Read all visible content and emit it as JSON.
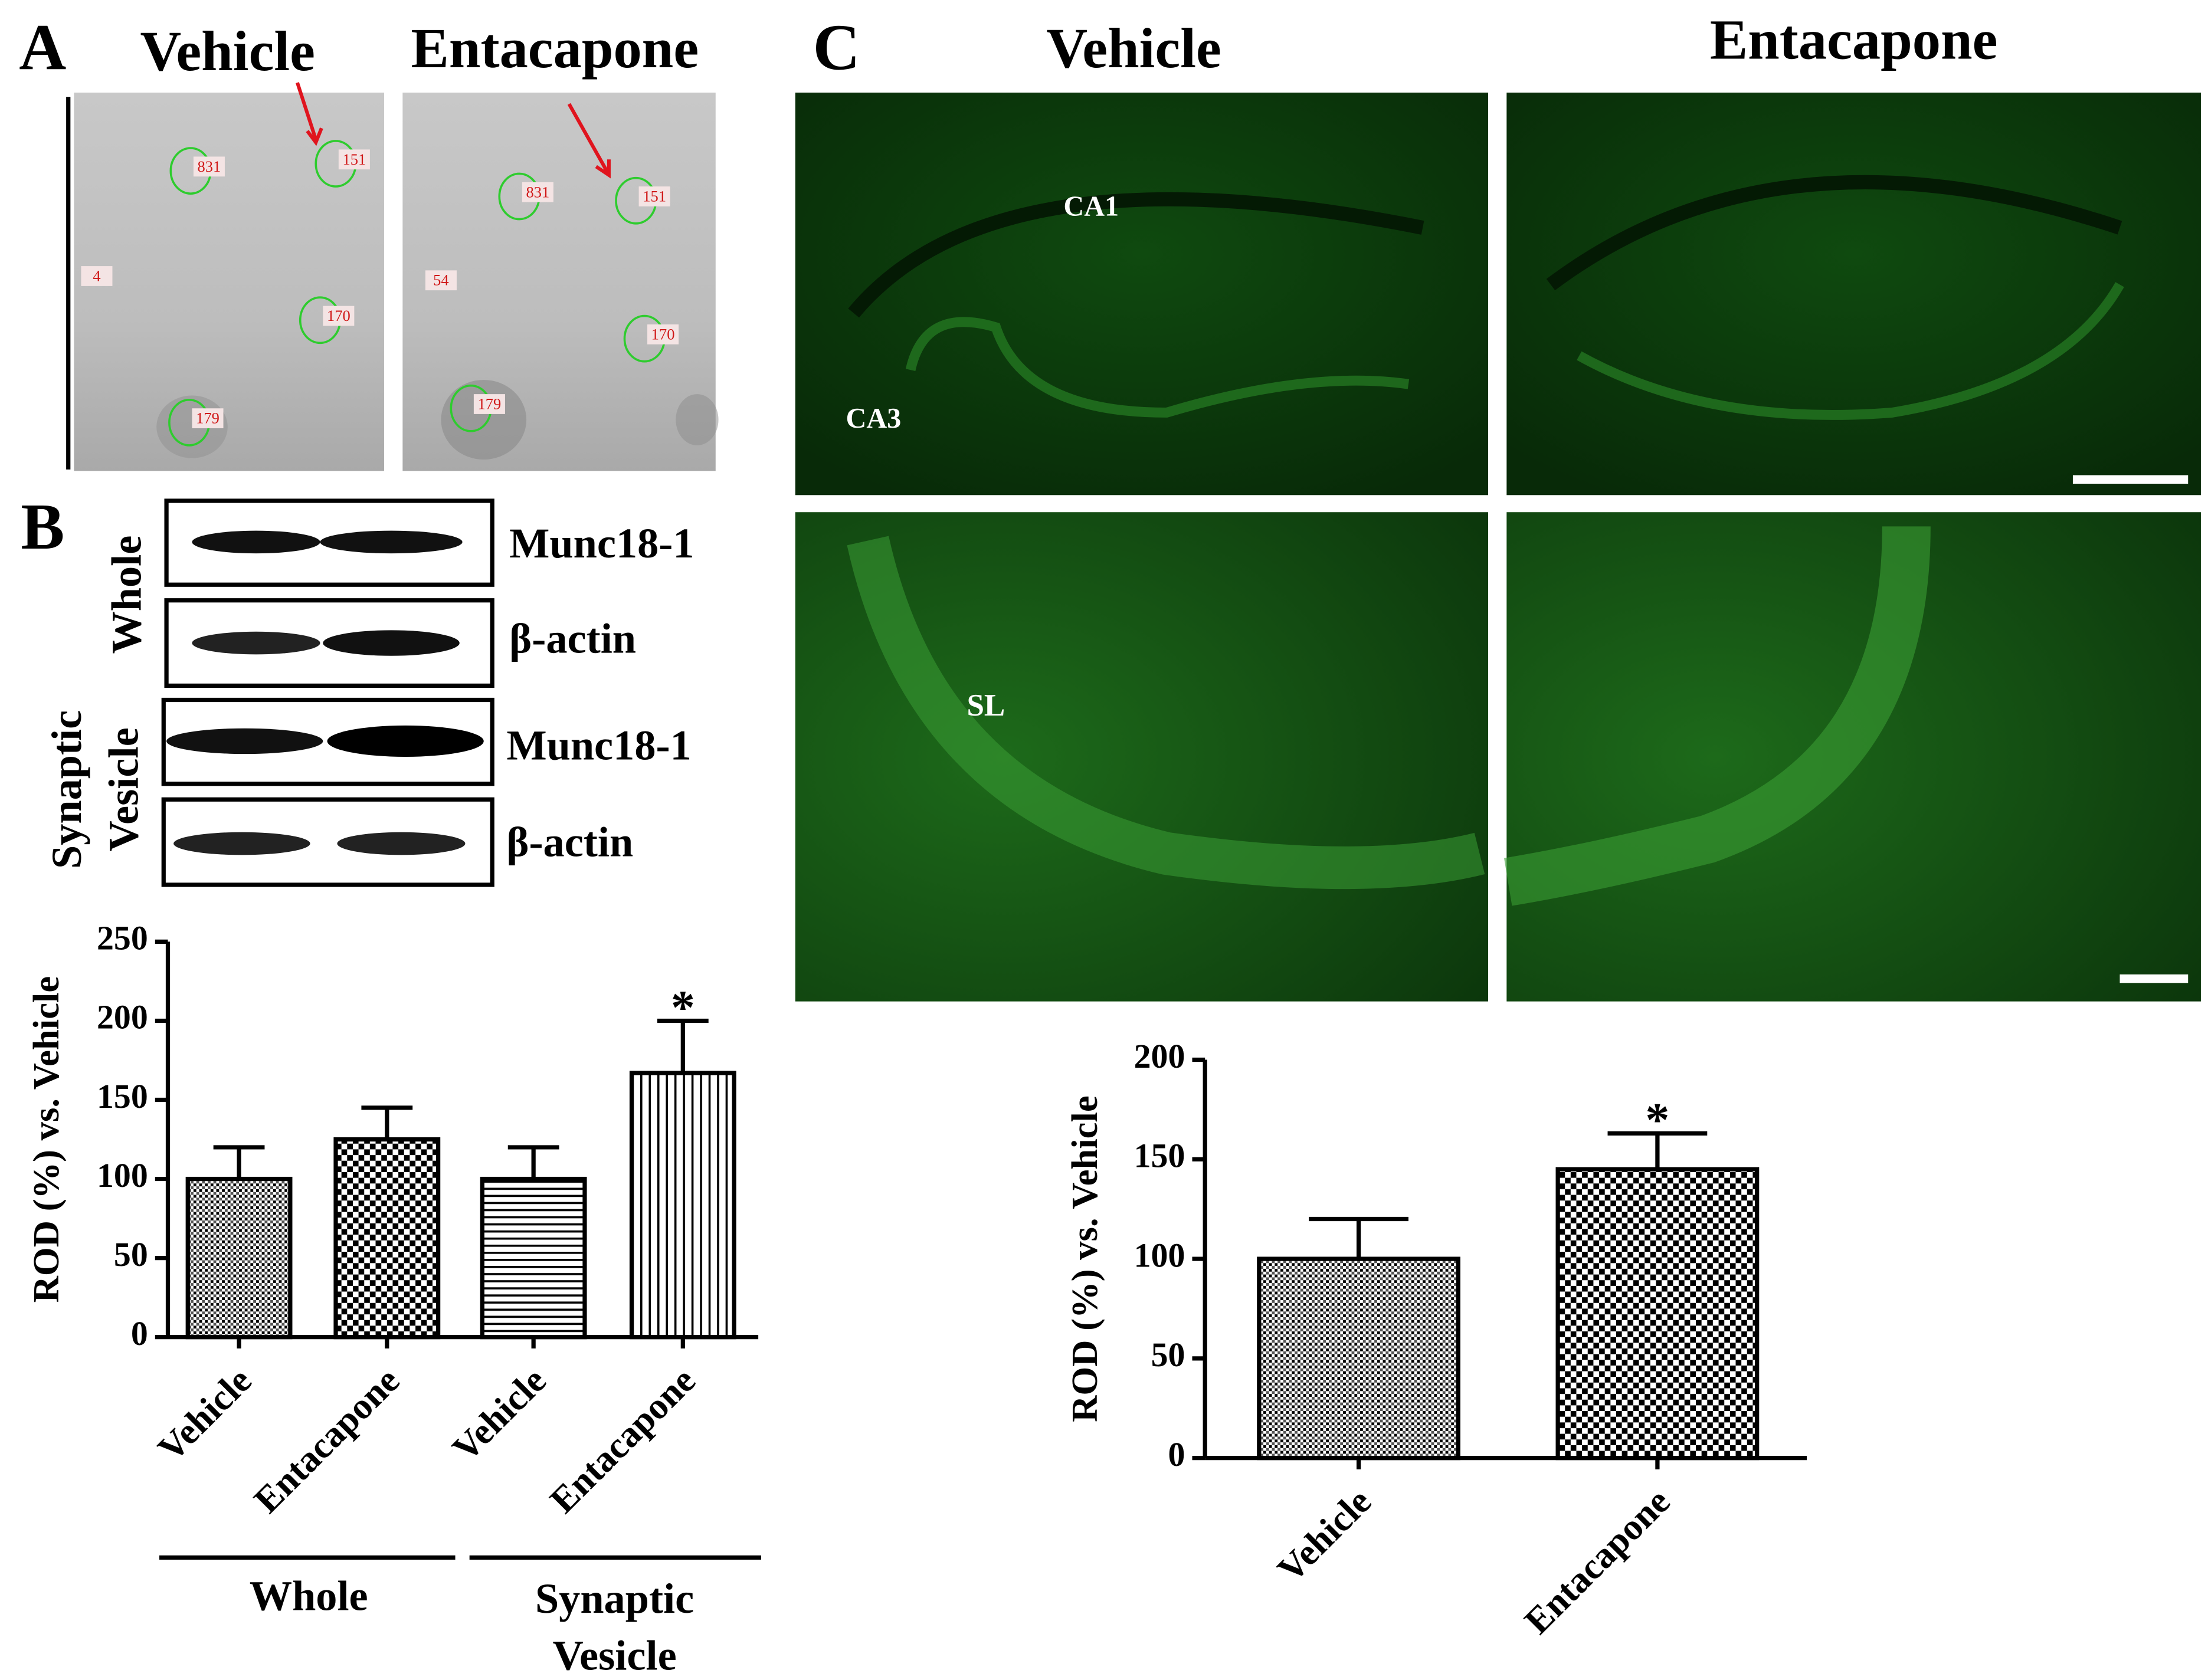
{
  "panel_a": {
    "label": "A",
    "columns": [
      "Vehicle",
      "Entacapone"
    ],
    "spots": [
      [
        "831",
        "151",
        "170",
        "179",
        "4"
      ],
      [
        "831",
        "151",
        "170",
        "179",
        "54"
      ]
    ]
  },
  "panel_b": {
    "label": "B",
    "blot_rows": [
      "Munc18-1",
      "β-actin",
      "Munc18-1",
      "β-actin"
    ],
    "blot_groups": [
      [
        "Whole"
      ],
      [
        "Synaptic",
        "Vesicle"
      ]
    ]
  },
  "panel_c": {
    "label": "C",
    "columns": [
      "Vehicle",
      "Entacapone"
    ],
    "regions": [
      "CA1",
      "CA3",
      "SL"
    ]
  },
  "chart_data": [
    {
      "type": "bar",
      "y_label": "ROD (%) vs. Vehicle",
      "categories": [
        "Vehicle",
        "Entacapone",
        "Vehicle",
        "Entacapone"
      ],
      "values": [
        100,
        125,
        100,
        167
      ],
      "errors": [
        20,
        20,
        20,
        33
      ],
      "annotations": [
        null,
        null,
        null,
        "*"
      ],
      "patterns": [
        "dots",
        "checker",
        "hlines",
        "vlines"
      ],
      "ylim": [
        0,
        250
      ],
      "yticks": [
        0,
        50,
        100,
        150,
        200,
        250
      ],
      "groups": [
        [
          "Whole"
        ],
        [
          "Synaptic",
          "Vesicle"
        ]
      ]
    },
    {
      "type": "bar",
      "y_label": "ROD (%) vs. Vehicle",
      "categories": [
        "Vehicle",
        "Entacapone"
      ],
      "values": [
        100,
        145
      ],
      "errors": [
        20,
        18
      ],
      "annotations": [
        null,
        "*"
      ],
      "patterns": [
        "dots",
        "checker"
      ],
      "ylim": [
        0,
        200
      ],
      "yticks": [
        0,
        50,
        100,
        150,
        200
      ]
    }
  ]
}
